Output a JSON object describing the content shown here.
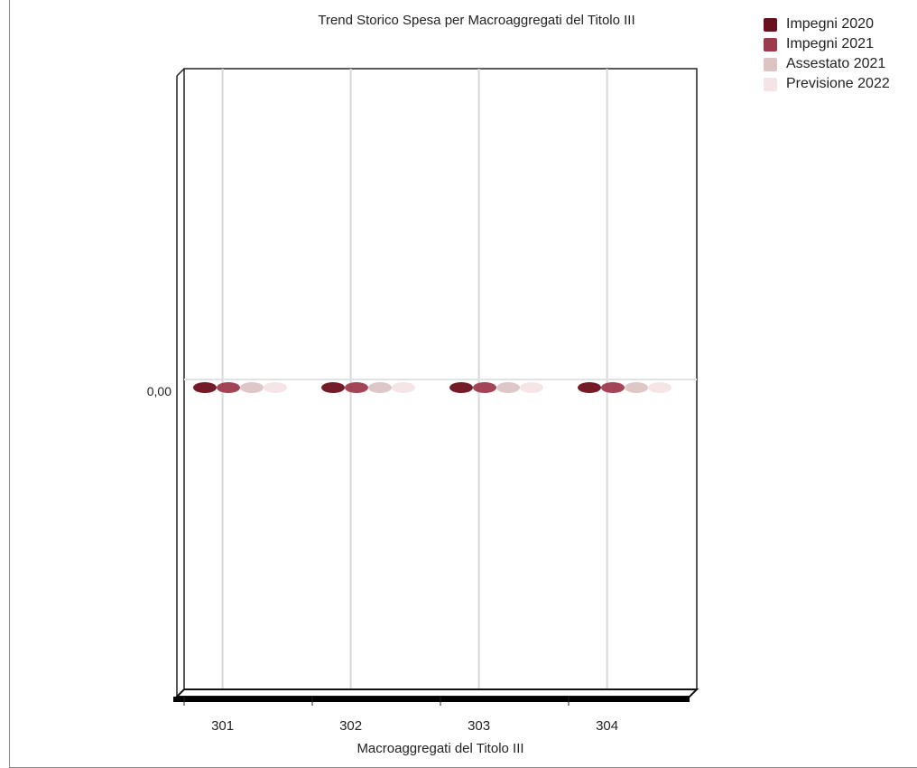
{
  "chart_data": {
    "type": "bar",
    "title": "Trend Storico Spesa per Macroaggregati del Titolo III",
    "xlabel": "Macroaggregati del Titolo III",
    "ylabel": "",
    "categories": [
      "301",
      "302",
      "303",
      "304"
    ],
    "y_tick_labels": [
      "0,00"
    ],
    "series": [
      {
        "name": "Impegni 2020",
        "values": [
          0,
          0,
          0,
          0
        ],
        "color": "#6b0f1e"
      },
      {
        "name": "Impegni 2021",
        "values": [
          0,
          0,
          0,
          0
        ],
        "color": "#9e3a4e"
      },
      {
        "name": "Assestato 2021",
        "values": [
          0,
          0,
          0,
          0
        ],
        "color": "#dcc4c4"
      },
      {
        "name": "Previsione 2022",
        "values": [
          0,
          0,
          0,
          0
        ],
        "color": "#f4e4e6"
      }
    ],
    "grid": true,
    "legend": "top-right",
    "three_d": true
  }
}
